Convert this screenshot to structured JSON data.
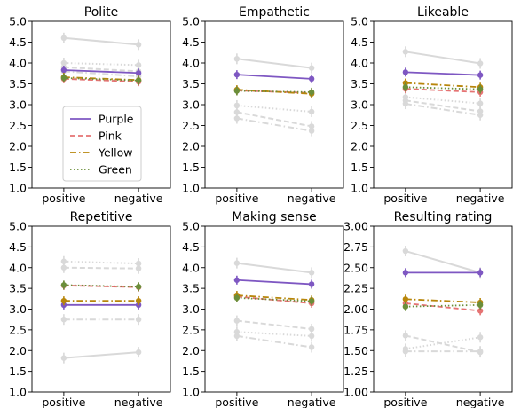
{
  "chart_data": [
    {
      "type": "line",
      "title": "Polite",
      "categories": [
        "positive",
        "negative"
      ],
      "ylim": [
        1.0,
        5.0
      ],
      "yticks": [
        "1.0",
        "1.5",
        "2.0",
        "2.5",
        "3.0",
        "3.5",
        "4.0",
        "4.5",
        "5.0"
      ],
      "yticks_num": [
        1.0,
        1.5,
        2.0,
        2.5,
        3.0,
        3.5,
        4.0,
        4.5,
        5.0
      ],
      "legend": {
        "placement": "bottom-center",
        "entries": [
          "Purple",
          "Pink",
          "Yellow",
          "Green"
        ]
      },
      "gray_series": [
        {
          "values": [
            4.6,
            4.44
          ],
          "style": "solid"
        },
        {
          "values": [
            4.0,
            3.95
          ],
          "style": "dotted"
        },
        {
          "values": [
            3.9,
            3.8
          ],
          "style": "dashed"
        },
        {
          "values": [
            3.8,
            3.68
          ],
          "style": "dashdot"
        }
      ],
      "series": [
        {
          "name": "Purple",
          "values": [
            3.83,
            3.76
          ]
        },
        {
          "name": "Pink",
          "values": [
            3.62,
            3.55
          ]
        },
        {
          "name": "Yellow",
          "values": [
            3.66,
            3.59
          ]
        },
        {
          "name": "Green",
          "values": [
            3.64,
            3.58
          ]
        }
      ]
    },
    {
      "type": "line",
      "title": "Empathetic",
      "categories": [
        "positive",
        "negative"
      ],
      "ylim": [
        1.0,
        5.0
      ],
      "yticks": [
        "1.0",
        "1.5",
        "2.0",
        "2.5",
        "3.0",
        "3.5",
        "4.0",
        "4.5",
        "5.0"
      ],
      "yticks_num": [
        1.0,
        1.5,
        2.0,
        2.5,
        3.0,
        3.5,
        4.0,
        4.5,
        5.0
      ],
      "gray_series": [
        {
          "values": [
            4.1,
            3.88
          ],
          "style": "solid"
        },
        {
          "values": [
            2.98,
            2.83
          ],
          "style": "dotted"
        },
        {
          "values": [
            2.82,
            2.48
          ],
          "style": "dashed"
        },
        {
          "values": [
            2.67,
            2.37
          ],
          "style": "dashdot"
        }
      ],
      "series": [
        {
          "name": "Purple",
          "values": [
            3.72,
            3.62
          ]
        },
        {
          "name": "Pink",
          "values": [
            3.34,
            3.28
          ]
        },
        {
          "name": "Yellow",
          "values": [
            3.36,
            3.26
          ]
        },
        {
          "name": "Green",
          "values": [
            3.33,
            3.3
          ]
        }
      ]
    },
    {
      "type": "line",
      "title": "Likeable",
      "categories": [
        "positive",
        "negative"
      ],
      "ylim": [
        1.0,
        5.0
      ],
      "yticks": [
        "1.0",
        "1.5",
        "2.0",
        "2.5",
        "3.0",
        "3.5",
        "4.0",
        "4.5",
        "5.0"
      ],
      "yticks_num": [
        1.0,
        1.5,
        2.0,
        2.5,
        3.0,
        3.5,
        4.0,
        4.5,
        5.0
      ],
      "gray_series": [
        {
          "values": [
            4.27,
            3.99
          ],
          "style": "solid"
        },
        {
          "values": [
            3.18,
            3.03
          ],
          "style": "dotted"
        },
        {
          "values": [
            3.1,
            2.84
          ],
          "style": "dashed"
        },
        {
          "values": [
            3.02,
            2.75
          ],
          "style": "dashdot"
        }
      ],
      "series": [
        {
          "name": "Purple",
          "values": [
            3.78,
            3.71
          ]
        },
        {
          "name": "Pink",
          "values": [
            3.38,
            3.3
          ]
        },
        {
          "name": "Yellow",
          "values": [
            3.52,
            3.42
          ]
        },
        {
          "name": "Green",
          "values": [
            3.42,
            3.37
          ]
        }
      ]
    },
    {
      "type": "line",
      "title": "Repetitive",
      "categories": [
        "positive",
        "negative"
      ],
      "ylim": [
        1.0,
        5.0
      ],
      "yticks": [
        "1.0",
        "1.5",
        "2.0",
        "2.5",
        "3.0",
        "3.5",
        "4.0",
        "4.5",
        "5.0"
      ],
      "yticks_num": [
        1.0,
        1.5,
        2.0,
        2.5,
        3.0,
        3.5,
        4.0,
        4.5,
        5.0
      ],
      "gray_series": [
        {
          "values": [
            4.15,
            4.1
          ],
          "style": "dotted"
        },
        {
          "values": [
            4.0,
            3.98
          ],
          "style": "dashed"
        },
        {
          "values": [
            2.75,
            2.75
          ],
          "style": "dashdot"
        },
        {
          "values": [
            1.82,
            1.96
          ],
          "style": "solid"
        }
      ],
      "series": [
        {
          "name": "Purple",
          "values": [
            3.1,
            3.1
          ]
        },
        {
          "name": "Pink",
          "values": [
            3.57,
            3.53
          ]
        },
        {
          "name": "Yellow",
          "values": [
            3.2,
            3.2
          ]
        },
        {
          "name": "Green",
          "values": [
            3.58,
            3.54
          ]
        }
      ]
    },
    {
      "type": "line",
      "title": "Making sense",
      "categories": [
        "positive",
        "negative"
      ],
      "ylim": [
        1.0,
        5.0
      ],
      "yticks": [
        "1.0",
        "1.5",
        "2.0",
        "2.5",
        "3.0",
        "3.5",
        "4.0",
        "4.5",
        "5.0"
      ],
      "yticks_num": [
        1.0,
        1.5,
        2.0,
        2.5,
        3.0,
        3.5,
        4.0,
        4.5,
        5.0
      ],
      "gray_series": [
        {
          "values": [
            4.11,
            3.88
          ],
          "style": "solid"
        },
        {
          "values": [
            2.72,
            2.52
          ],
          "style": "dashed"
        },
        {
          "values": [
            2.45,
            2.35
          ],
          "style": "dotted"
        },
        {
          "values": [
            2.35,
            2.08
          ],
          "style": "dashdot"
        }
      ],
      "series": [
        {
          "name": "Purple",
          "values": [
            3.7,
            3.6
          ]
        },
        {
          "name": "Pink",
          "values": [
            3.3,
            3.14
          ]
        },
        {
          "name": "Yellow",
          "values": [
            3.33,
            3.22
          ]
        },
        {
          "name": "Green",
          "values": [
            3.27,
            3.19
          ]
        }
      ]
    },
    {
      "type": "line",
      "title": "Resulting rating",
      "categories": [
        "positive",
        "negative"
      ],
      "ylim": [
        1.0,
        3.0
      ],
      "yticks": [
        "1.00",
        "1.25",
        "1.50",
        "1.75",
        "2.00",
        "2.25",
        "2.50",
        "2.75",
        "3.00"
      ],
      "yticks_num": [
        1.0,
        1.25,
        1.5,
        1.75,
        2.0,
        2.25,
        2.5,
        2.75,
        3.0
      ],
      "gray_series": [
        {
          "values": [
            2.7,
            2.44
          ],
          "style": "solid"
        },
        {
          "values": [
            1.68,
            1.48
          ],
          "style": "dashed"
        },
        {
          "values": [
            1.52,
            1.66
          ],
          "style": "dotted"
        },
        {
          "values": [
            1.49,
            1.49
          ],
          "style": "dashdot"
        }
      ],
      "series": [
        {
          "name": "Purple",
          "values": [
            2.44,
            2.44
          ]
        },
        {
          "name": "Pink",
          "values": [
            2.07,
            1.98
          ]
        },
        {
          "name": "Yellow",
          "values": [
            2.12,
            2.08
          ]
        },
        {
          "name": "Green",
          "values": [
            2.03,
            2.05
          ]
        }
      ]
    }
  ],
  "colors": {
    "Purple": "#7e57c2",
    "Pink": "#e57373",
    "Yellow": "#b8860b",
    "Green": "#6b8e3a",
    "gray": "#d9d9d9"
  },
  "styles": {
    "Purple": "solid",
    "Pink": "dashed",
    "Yellow": "dashdot",
    "Green": "dotted"
  }
}
